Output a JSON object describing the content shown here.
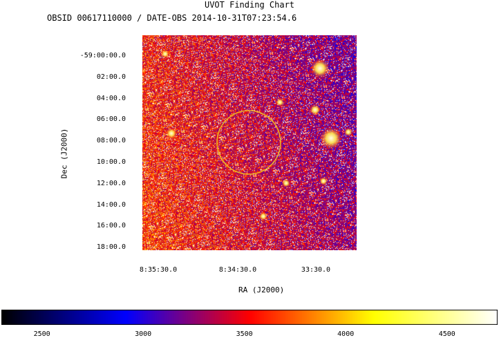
{
  "chart_data": {
    "type": "heatmap",
    "title": "UVOT Finding Chart",
    "subtitle": "OBSID 00617110000 / DATE-OBS 2014-10-31T07:23:54.6",
    "xlabel": "RA (J2000)",
    "ylabel": "Dec (J2000)",
    "x_ticks": [
      {
        "label": "8:35:30.0"
      },
      {
        "label": "8:34:30.0"
      },
      {
        "label": "33:30.0"
      }
    ],
    "y_ticks": [
      {
        "label": "-59:00:00.0"
      },
      {
        "label": "02:00.0"
      },
      {
        "label": "04:00.0"
      },
      {
        "label": "06:00.0"
      },
      {
        "label": "08:00.0"
      },
      {
        "label": "10:00.0"
      },
      {
        "label": "12:00.0"
      },
      {
        "label": "14:00.0"
      },
      {
        "label": "16:00.0"
      },
      {
        "label": "18:00.0"
      }
    ],
    "colorbar": {
      "min": 2300,
      "max": 4750,
      "ticks": [
        2500,
        3000,
        3500,
        4000,
        4500
      ],
      "colors": [
        "#000000",
        "#0000ff",
        "#ff0000",
        "#ffff00",
        "#ffffff"
      ]
    },
    "target_circle": {
      "color": "#f0b020"
    },
    "grid": false
  }
}
